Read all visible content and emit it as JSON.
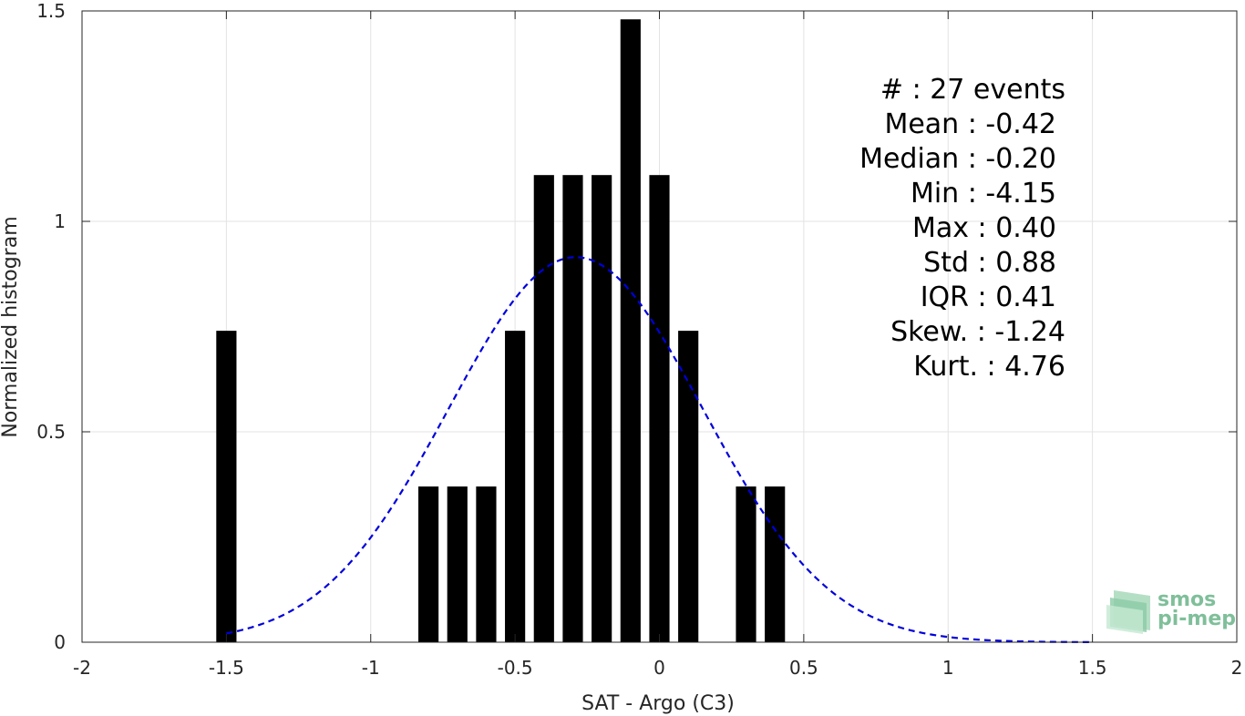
{
  "chart_data": {
    "type": "bar",
    "xlabel": "SAT - Argo (C3)",
    "ylabel": "Normalized histogram",
    "xlim": [
      -2,
      2
    ],
    "ylim": [
      0,
      1.5
    ],
    "xticks": [
      -2,
      -1.5,
      -1,
      -0.5,
      0,
      0.5,
      1,
      1.5,
      2
    ],
    "xtick_labels": [
      "-2",
      "-1.5",
      "-1",
      "-0.5",
      "0",
      "0.5",
      "1",
      "1.5",
      "2"
    ],
    "yticks": [
      0,
      0.5,
      1,
      1.5
    ],
    "ytick_labels": [
      "0",
      "0.5",
      "1",
      "1.5"
    ],
    "grid": true,
    "bar_color": "#000000",
    "bar_width": 0.07,
    "bins": [
      {
        "x": -1.5,
        "value": 0.74
      },
      {
        "x": -0.8,
        "value": 0.37
      },
      {
        "x": -0.7,
        "value": 0.37
      },
      {
        "x": -0.6,
        "value": 0.37
      },
      {
        "x": -0.5,
        "value": 0.74
      },
      {
        "x": -0.4,
        "value": 1.11
      },
      {
        "x": -0.3,
        "value": 1.11
      },
      {
        "x": -0.2,
        "value": 1.11
      },
      {
        "x": -0.1,
        "value": 1.48
      },
      {
        "x": 0.0,
        "value": 1.11
      },
      {
        "x": 0.1,
        "value": 0.74
      },
      {
        "x": 0.3,
        "value": 0.37
      },
      {
        "x": 0.4,
        "value": 0.37
      }
    ],
    "fit_curve": {
      "style": "dashed",
      "color": "#0000dd",
      "mean": -0.29,
      "std": 0.44,
      "peak": 0.915,
      "x_range": [
        -1.5,
        1.5
      ]
    },
    "stats_lines": [
      "#  : 27 events",
      "Mean : -0.42",
      "Median : -0.20",
      "Min : -4.15",
      "Max : 0.40",
      "Std : 0.88",
      "IQR : 0.41",
      "Skew. : -1.24",
      "Kurt. : 4.76"
    ],
    "stats_right_edges": [
      "events",
      "num",
      "num",
      "num",
      "num",
      "num",
      "num",
      "events",
      "events"
    ]
  },
  "logo": {
    "line1": "smos",
    "line2": "pi-mep",
    "color": "#7fbf9a"
  }
}
